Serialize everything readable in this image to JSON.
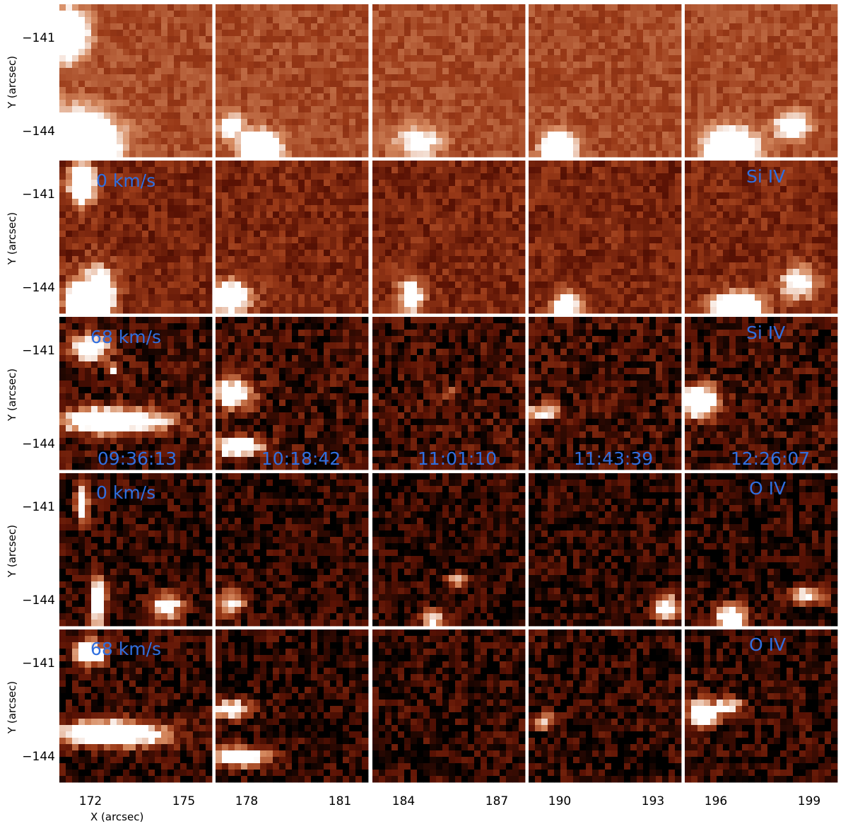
{
  "figure": {
    "x_axis_title": "X (arcsec)",
    "y_axis_title": "Y (arcsec)",
    "y_tick_labels": [
      "−141",
      "−144"
    ],
    "x_tick_labels": [
      [
        "172",
        "175"
      ],
      [
        "178",
        "181"
      ],
      [
        "184",
        "187"
      ],
      [
        "190",
        "193"
      ],
      [
        "196",
        "199"
      ]
    ],
    "times": [
      "09:36:13",
      "10:18:42",
      "11:01:10",
      "11:43:39",
      "12:26:07"
    ],
    "rows": [
      {
        "row": 1,
        "velocity_label": "",
        "line_label": ""
      },
      {
        "row": 2,
        "velocity_label": "0 km/s",
        "line_label": "Si IV"
      },
      {
        "row": 3,
        "velocity_label": "68 km/s",
        "line_label": "Si IV"
      },
      {
        "row": 4,
        "velocity_label": "0 km/s",
        "line_label": "O IV"
      },
      {
        "row": 5,
        "velocity_label": "68 km/s",
        "line_label": "O IV"
      }
    ],
    "colors": {
      "label_blue": "#2f6fe0",
      "colormap": [
        "#000000",
        "#5a1204",
        "#9a3a18",
        "#d68a60",
        "#ffffff"
      ]
    }
  }
}
